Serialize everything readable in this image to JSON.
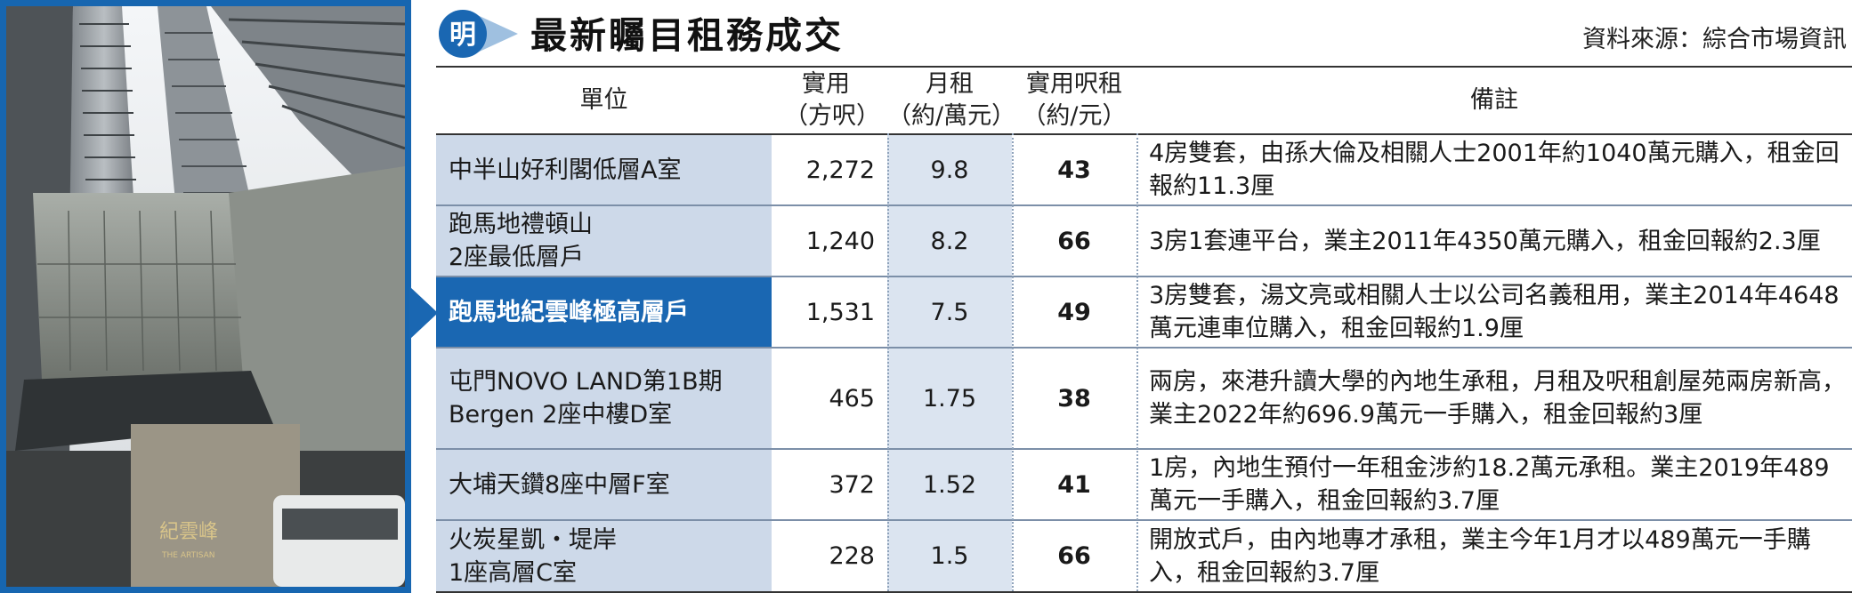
{
  "header": {
    "logo_char": "明",
    "title": "最新矚目租務成交",
    "source": "資料來源：綜合市場資訊"
  },
  "photo": {
    "sign_text": "紀雲峰",
    "sign_sub": "THE ARTISAN"
  },
  "table": {
    "columns": {
      "unit": "單位",
      "area_l1": "實用",
      "area_l2": "（方呎）",
      "rent_l1": "月租",
      "rent_l2": "（約/萬元）",
      "psf_l1": "實用呎租",
      "psf_l2": "（約/元）",
      "note": "備註"
    },
    "rows": [
      {
        "unit_l1": "中半山好利閣低層A室",
        "unit_l2": "",
        "area": "2,272",
        "rent": "9.8",
        "psf": "43",
        "note": "4房雙套，由孫大倫及相關人士2001年約1040萬元購入，租金回報約11.3厘",
        "highlight": false
      },
      {
        "unit_l1": "跑馬地禮頓山",
        "unit_l2": "2座最低層戶",
        "area": "1,240",
        "rent": "8.2",
        "psf": "66",
        "note": "3房1套連平台，業主2011年4350萬元購入，租金回報約2.3厘",
        "highlight": false
      },
      {
        "unit_l1": "跑馬地紀雲峰極高層戶",
        "unit_l2": "",
        "area": "1,531",
        "rent": "7.5",
        "psf": "49",
        "note": "3房雙套，湯文亮或相關人士以公司名義租用，業主2014年4648萬元連車位購入，租金回報約1.9厘",
        "highlight": true
      },
      {
        "unit_l1": "屯門NOVO LAND第1B期",
        "unit_l2": "Bergen 2座中樓D室",
        "area": "465",
        "rent": "1.75",
        "psf": "38",
        "note": "兩房，來港升讀大學的內地生承租，月租及呎租創屋苑兩房新高，業主2022年約696.9萬元一手購入，租金回報約3厘",
        "highlight": false
      },
      {
        "unit_l1": "大埔天鑽8座中層F室",
        "unit_l2": "",
        "area": "372",
        "rent": "1.52",
        "psf": "41",
        "note": "1房，內地生預付一年租金涉約18.2萬元承租。業主2019年489萬元一手購入，租金回報約3.7厘",
        "highlight": false
      },
      {
        "unit_l1": "火炭星凱・堤岸",
        "unit_l2": "1座高層C室",
        "area": "228",
        "rent": "1.5",
        "psf": "66",
        "note": "開放式戶，由內地專才承租，業主今年1月才以489萬元一手購入，租金回報約3.7厘",
        "highlight": false
      }
    ]
  },
  "colors": {
    "accent_blue": "#1a67b2",
    "unit_cell_bg": "#cdd9e9",
    "rent_cell_bg": "#dbe4f0"
  }
}
